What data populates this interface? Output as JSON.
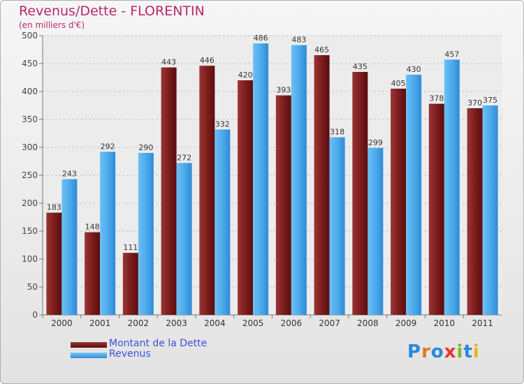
{
  "chart_data": {
    "type": "bar",
    "title": "Revenus/Dette - FLORENTIN",
    "subtitle": "(en milliers d'€)",
    "categories": [
      "2000",
      "2001",
      "2002",
      "2003",
      "2004",
      "2005",
      "2006",
      "2007",
      "2008",
      "2009",
      "2010",
      "2011"
    ],
    "series": [
      {
        "name": "Montant de la Dette",
        "color": "#7a1b1b",
        "values": [
          183,
          148,
          111,
          443,
          446,
          420,
          393,
          465,
          435,
          405,
          378,
          370
        ]
      },
      {
        "name": "Revenus",
        "color": "#4aa8ea",
        "values": [
          243,
          292,
          290,
          272,
          332,
          486,
          483,
          318,
          299,
          430,
          457,
          375
        ]
      }
    ],
    "ylim": [
      0,
      500
    ],
    "yticks": [
      0,
      50,
      100,
      150,
      200,
      250,
      300,
      350,
      400,
      450,
      500
    ],
    "grid": true,
    "legend": "bottom-left"
  },
  "logo": {
    "letters": [
      {
        "ch": "P",
        "color": "#2a88d8"
      },
      {
        "ch": "r",
        "color": "#e07a1c"
      },
      {
        "ch": "o",
        "color": "#2a88d8"
      },
      {
        "ch": "x",
        "color": "#e8342c"
      },
      {
        "ch": "i",
        "color": "#7ab828"
      },
      {
        "ch": "t",
        "color": "#2a88d8"
      },
      {
        "ch": "i",
        "color": "#e8b41c"
      }
    ]
  }
}
